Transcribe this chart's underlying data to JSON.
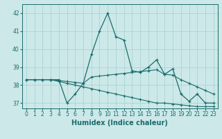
{
  "xlabel": "Humidex (Indice chaleur)",
  "ylabel": "",
  "bg_color": "#cce8e8",
  "line_color": "#1a6b6b",
  "grid_color": "#aad4d4",
  "x": [
    0,
    1,
    2,
    3,
    4,
    5,
    6,
    7,
    8,
    9,
    10,
    11,
    12,
    13,
    14,
    15,
    16,
    17,
    18,
    19,
    20,
    21,
    22,
    23
  ],
  "line1": [
    38.3,
    38.3,
    38.3,
    38.3,
    38.3,
    37.0,
    37.5,
    38.1,
    39.7,
    41.0,
    42.0,
    40.7,
    40.5,
    38.8,
    38.7,
    39.0,
    39.4,
    38.6,
    38.9,
    37.5,
    37.1,
    37.5,
    37.0,
    37.0
  ],
  "line2": [
    38.3,
    38.3,
    38.3,
    38.3,
    38.25,
    38.2,
    38.15,
    38.1,
    38.45,
    38.5,
    38.55,
    38.6,
    38.65,
    38.7,
    38.75,
    38.8,
    38.85,
    38.6,
    38.55,
    38.3,
    38.1,
    37.9,
    37.7,
    37.5
  ],
  "line3": [
    38.3,
    38.3,
    38.3,
    38.3,
    38.2,
    38.1,
    38.0,
    37.9,
    37.8,
    37.7,
    37.6,
    37.5,
    37.4,
    37.3,
    37.2,
    37.1,
    37.0,
    37.0,
    36.95,
    36.9,
    36.85,
    36.8,
    36.8,
    36.8
  ],
  "ylim": [
    36.7,
    42.5
  ],
  "yticks": [
    37,
    38,
    39,
    40,
    41,
    42
  ],
  "xticks": [
    0,
    1,
    2,
    3,
    4,
    5,
    6,
    7,
    8,
    9,
    10,
    11,
    12,
    13,
    14,
    15,
    16,
    17,
    18,
    19,
    20,
    21,
    22,
    23
  ],
  "tick_fontsize": 5.5,
  "label_fontsize": 7.0
}
